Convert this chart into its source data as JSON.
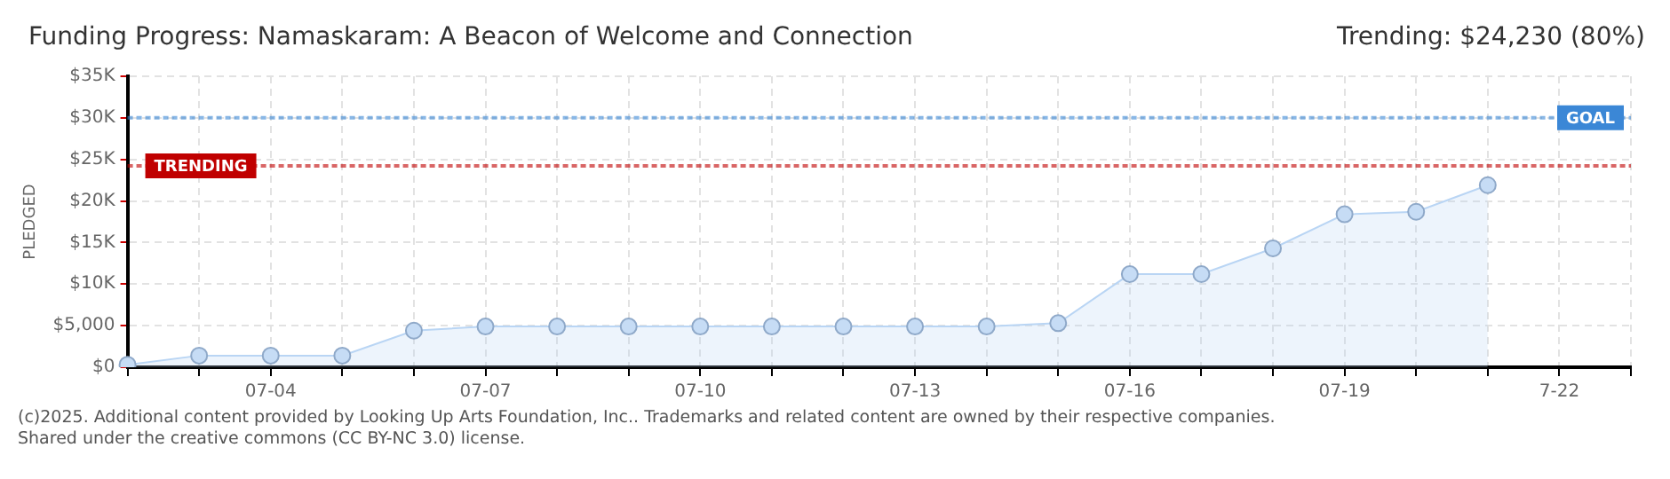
{
  "chart_data": {
    "type": "area",
    "title": "Funding Progress: Namaskaram: A Beacon of Welcome and Connection",
    "subtitle": "Trending:  $24,230 (80%)",
    "ylabel": "PLEDGED",
    "categories": [
      null,
      null,
      "07-04",
      null,
      null,
      "07-07",
      null,
      null,
      "07-10",
      null,
      null,
      "07-13",
      null,
      null,
      "07-16",
      null,
      null,
      "07-19",
      null,
      null,
      "7-22",
      null
    ],
    "series": [
      {
        "color": "#b9d5f4",
        "values": [
          300,
          1400,
          1400,
          1400,
          4400,
          4900,
          4900,
          4900,
          4900,
          4900,
          4900,
          4900,
          4900,
          5300,
          11200,
          11200,
          14300,
          18400,
          18700,
          21900,
          null,
          null
        ]
      }
    ],
    "ylim": [
      0,
      35000
    ],
    "yticks": [
      {
        "value": 0,
        "label": "$0"
      },
      {
        "value": 5000,
        "label": "$5,000"
      },
      {
        "value": 10000,
        "label": "$10K"
      },
      {
        "value": 15000,
        "label": "$15K"
      },
      {
        "value": 20000,
        "label": "$20K"
      },
      {
        "value": 25000,
        "label": "$25K"
      },
      {
        "value": 30000,
        "label": "$30K"
      },
      {
        "value": 35000,
        "label": "$35K"
      }
    ],
    "ref_lines": [
      {
        "axis": "y",
        "value": 30000,
        "label": "GOAL",
        "color": "#3b87d6",
        "line_style": "dotted"
      },
      {
        "axis": "y",
        "value": 24230,
        "label": "TRENDING",
        "color": "#c00000",
        "line_style": "dotted"
      }
    ],
    "annotations": [
      "(c)2025. Additional content provided by Looking Up Arts Foundation, Inc.. Trademarks and related content are owned by their respective companies.",
      "Shared under the creative commons (CC BY-NC 3.0) license."
    ],
    "grid": true,
    "legend": false,
    "marker": "circle"
  }
}
